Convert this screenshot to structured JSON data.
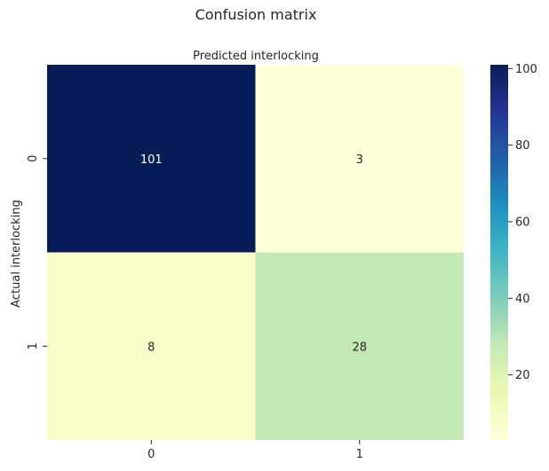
{
  "chart_data": {
    "type": "heatmap",
    "title": "Confusion matrix",
    "xlabel": "Predicted interlocking",
    "ylabel": "Actual interlocking",
    "x_categories": [
      "0",
      "1"
    ],
    "y_categories": [
      "0",
      "1"
    ],
    "values": [
      [
        101,
        3
      ],
      [
        8,
        28
      ]
    ],
    "annotations": [
      "101",
      "3",
      "8",
      "28"
    ],
    "colormap": "YlGnBu",
    "color_range": [
      3,
      101
    ],
    "colorbar_ticks": [
      "20",
      "40",
      "60",
      "80",
      "100"
    ],
    "xlabel_position": "top"
  }
}
